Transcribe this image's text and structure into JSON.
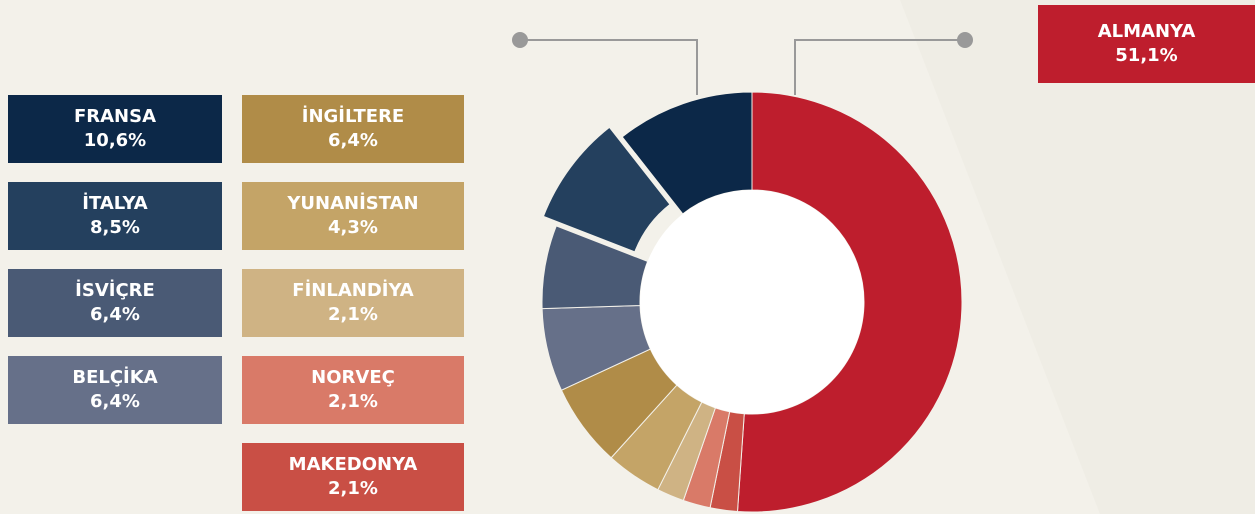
{
  "chart_data": {
    "type": "pie",
    "donut": true,
    "categories": [
      "ALMANYA",
      "MAKEDONYA",
      "NORVEÇ",
      "FİNLANDİYA",
      "YUNANİSTAN",
      "İNGİLTERE",
      "BELÇİKA",
      "İSVİÇRE",
      "İTALYA",
      "FRANSA"
    ],
    "values": [
      51.1,
      2.1,
      2.1,
      2.1,
      4.3,
      6.4,
      6.4,
      6.4,
      8.5,
      10.6
    ],
    "value_labels": [
      "51,1%",
      "2,1%",
      "2,1%",
      "2,1%",
      "4,3%",
      "6,4%",
      "6,4%",
      "6,4%",
      "8,5%",
      "10,6%"
    ],
    "colors": [
      "#be1e2d",
      "#c94f45",
      "#d97a68",
      "#cfb384",
      "#c4a467",
      "#b08c48",
      "#667089",
      "#4a5a75",
      "#24405e",
      "#0c2848"
    ],
    "explode": [
      8
    ]
  }
}
